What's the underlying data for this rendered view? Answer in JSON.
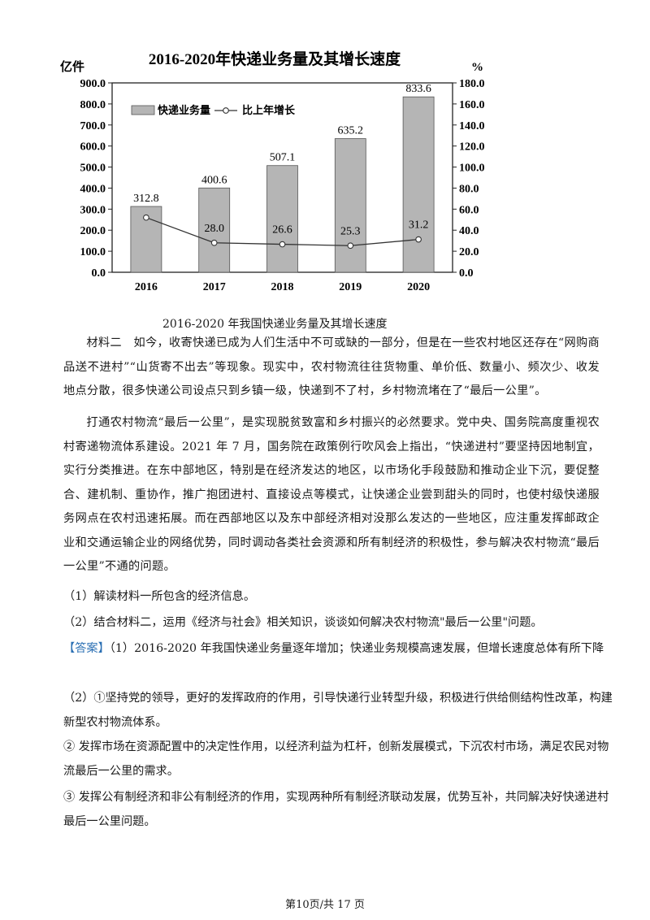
{
  "chart_data": {
    "type": "bar+line",
    "title": "2016-2020年快递业务量及其增长速度",
    "y_left_unit": "亿件",
    "y_right_unit": "%",
    "categories": [
      "2016",
      "2017",
      "2018",
      "2019",
      "2020"
    ],
    "left_ticks": [
      "900.0",
      "800.0",
      "700.0",
      "600.0",
      "500.0",
      "400.0",
      "300.0",
      "200.0",
      "100.0",
      "0.0"
    ],
    "right_ticks": [
      "180.0",
      "160.0",
      "140.0",
      "120.0",
      "100.0",
      "80.0",
      "60.0",
      "40.0",
      "20.0",
      "0.0"
    ],
    "ylim_left": [
      0,
      900
    ],
    "ylim_right": [
      0,
      180
    ],
    "series": [
      {
        "name": "快递业务量",
        "kind": "bar",
        "values": [
          312.8,
          400.6,
          507.1,
          635.2,
          833.6
        ],
        "labels": [
          "312.8",
          "400.6",
          "507.1",
          "635.2",
          "833.6"
        ]
      },
      {
        "name": "比上年增长",
        "kind": "line",
        "values": [
          52,
          28.0,
          26.6,
          25.3,
          31.2
        ],
        "labels": [
          "",
          "28.0",
          "26.6",
          "25.3",
          "31.2"
        ]
      }
    ],
    "legend_position": "top-left",
    "colors": {
      "bar": "#b5b5b5",
      "line": "#333333"
    }
  },
  "caption": "2016-2020 年我国快递业务量及其增长速度",
  "para1": "材料二　如今，收寄快递已成为人们生活中不可或缺的一部分，但是在一些农村地区还存在“网购商品送不进村”“山货寄不出去”等现象。现实中，农村物流往往货物重、单价低、数量小、频次少、收发地点分散，很多快递公司设点只到乡镇一级，快递到不了村，乡村物流堵在了“最后一公里”。",
  "para2": "打通农村物流“最后一公里”，是实现脱贫致富和乡村振兴的必然要求。党中央、国务院高度重视农村寄递物流体系建设。2021 年 7 月，国务院在政策例行吹风会上指出，“快递进村”要坚持因地制宜，实行分类推进。在东中部地区，特别是在经济发达的地区，以市场化手段鼓励和推动企业下沉，要促整合、建机制、重协作，推广抱团进村、直接设点等模式，让快递企业尝到甜头的同时，也使村级快递服务网点在农村迅速拓展。而在西部地区以及东中部经济相对没那么发达的一些地区，应注重发挥邮政企业和交通运输企业的网络优势，同时调动各类社会资源和所有制经济的积极性，参与解决农村物流“最后一公里”不通的问题。",
  "q1": "（1）解读材料一所包含的经济信息。",
  "q2": "（2）结合材料二，运用《经济与社会》相关知识，谈谈如何解决农村物流\"最后一公里\"问题。",
  "answer_tag": "【答案】",
  "answer1": "（1）2016-2020 年我国快递业务量逐年增加；快递业务规模高速发展，但增长速度总体有所下降",
  "answer2": "（2）①坚持党的领导，更好的发挥政府的作用，引导快递行业转型升级，积极进行供给侧结构性改革，构建新型农村物流体系。",
  "answer3": "② 发挥市场在资源配置中的决定性作用，以经济利益为杠杆，创新发展模式，下沉农村市场，满足农民对物流最后一公里的需求。",
  "answer4": "③ 发挥公有制经济和非公有制经济的作用，实现两种所有制经济联动发展，优势互补，共同解决好快递进村最后一公里问题。",
  "footer": "第10页/共 17 页"
}
